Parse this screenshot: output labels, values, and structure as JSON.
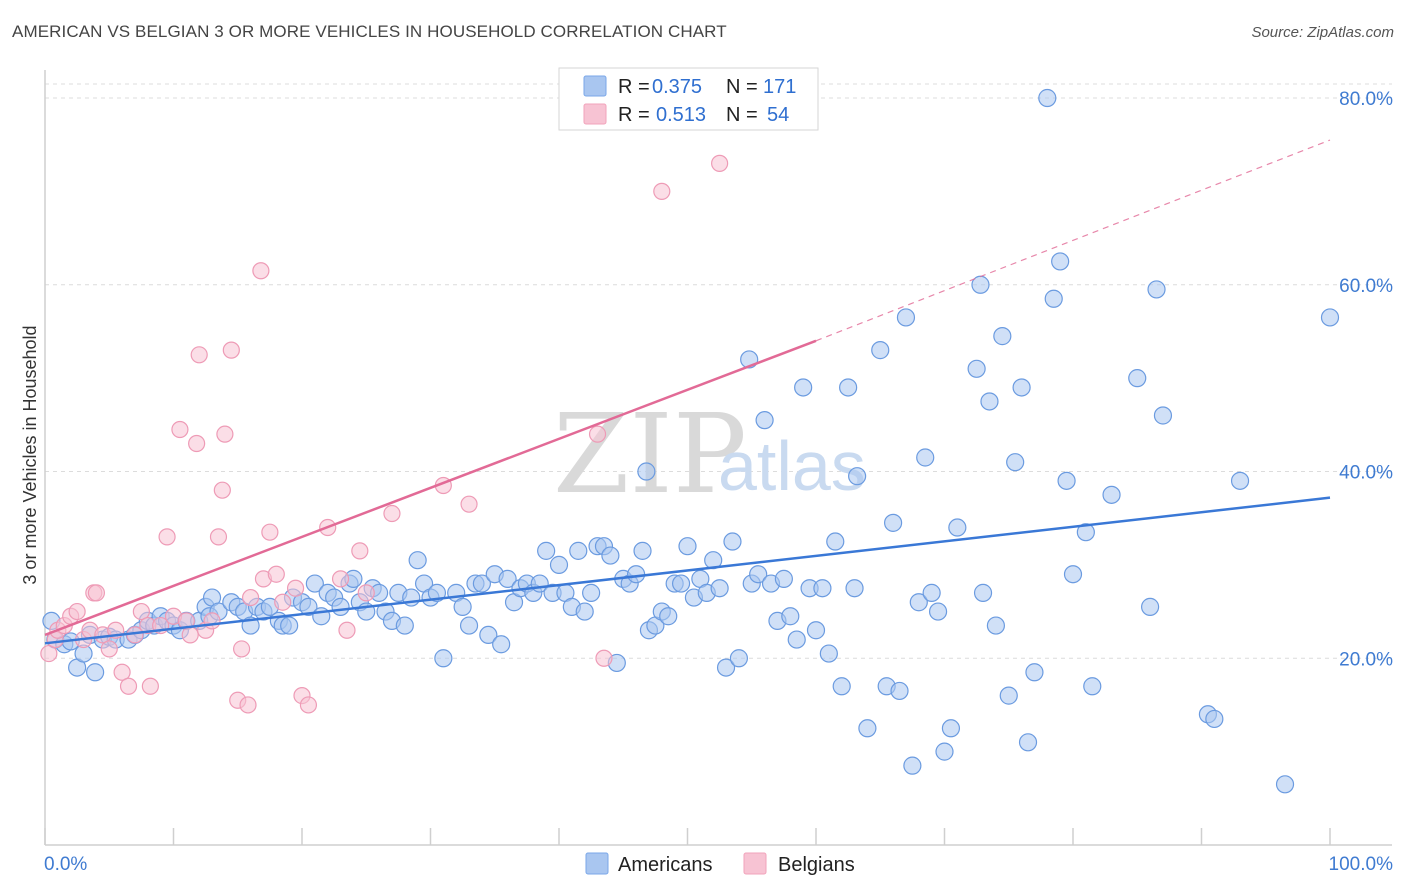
{
  "header": {
    "title": "AMERICAN VS BELGIAN 3 OR MORE VEHICLES IN HOUSEHOLD CORRELATION CHART",
    "source": "Source: ZipAtlas.com"
  },
  "watermark": {
    "zip": "ZIP",
    "atlas": "atlas"
  },
  "legend_top": [
    {
      "r_label": "R =",
      "r_value": "0.375",
      "n_label": "N =",
      "n_value": "171",
      "color": "#7aa7e8"
    },
    {
      "r_label": "R =",
      "r_value": "0.513",
      "n_label": "N =",
      "n_value": "54",
      "color": "#f2a3bb"
    }
  ],
  "legend_bottom": [
    {
      "label": "Americans",
      "color": "#7aa7e8"
    },
    {
      "label": "Belgians",
      "color": "#f2a3bb"
    }
  ],
  "chart_data": {
    "type": "scatter",
    "title": "AMERICAN VS BELGIAN 3 OR MORE VEHICLES IN HOUSEHOLD CORRELATION CHART",
    "xlabel": "",
    "ylabel": "3 or more Vehicles in Household",
    "xlim": [
      0,
      100
    ],
    "ylim": [
      0,
      83
    ],
    "x_tick_labels": [
      "0.0%",
      "100.0%"
    ],
    "y_ticks": [
      20,
      40,
      60,
      80
    ],
    "y_tick_labels": [
      "20.0%",
      "40.0%",
      "60.0%",
      "80.0%"
    ],
    "grid": true,
    "legend_position": "top-center",
    "colors": {
      "americans": "#3a78d6",
      "americans_fill": "#a9c6f0",
      "belgians": "#e26a96",
      "belgians_fill": "#f7c3d3"
    },
    "series": [
      {
        "name": "Americans",
        "r": 0.375,
        "n": 171,
        "trend": {
          "x": [
            0,
            100
          ],
          "y": [
            21.6,
            37.2
          ]
        },
        "points": [
          [
            0.5,
            24
          ],
          [
            0.8,
            22
          ],
          [
            1.5,
            21.5
          ],
          [
            2,
            21.8
          ],
          [
            2.5,
            19
          ],
          [
            3,
            20.5
          ],
          [
            3.5,
            22.5
          ],
          [
            3.9,
            18.5
          ],
          [
            4.5,
            22
          ],
          [
            5,
            22.3
          ],
          [
            5.5,
            22
          ],
          [
            6.5,
            22
          ],
          [
            7,
            22.5
          ],
          [
            7.5,
            23
          ],
          [
            8,
            24
          ],
          [
            8.5,
            23.5
          ],
          [
            9,
            24.5
          ],
          [
            9.5,
            24
          ],
          [
            10,
            23.5
          ],
          [
            10.5,
            23
          ],
          [
            11,
            24
          ],
          [
            12,
            24
          ],
          [
            12.5,
            25.5
          ],
          [
            12.8,
            24.5
          ],
          [
            13,
            26.5
          ],
          [
            13.5,
            25
          ],
          [
            14.5,
            26
          ],
          [
            15,
            25.5
          ],
          [
            15.5,
            25
          ],
          [
            16,
            23.5
          ],
          [
            16.5,
            25.5
          ],
          [
            17,
            25
          ],
          [
            17.5,
            25.5
          ],
          [
            18.2,
            24
          ],
          [
            18.5,
            23.5
          ],
          [
            19,
            23.5
          ],
          [
            19.3,
            26.5
          ],
          [
            20,
            26
          ],
          [
            20.5,
            25.5
          ],
          [
            21,
            28
          ],
          [
            21.5,
            24.5
          ],
          [
            22,
            27
          ],
          [
            22.5,
            26.5
          ],
          [
            23,
            25.5
          ],
          [
            23.7,
            28
          ],
          [
            24,
            28.5
          ],
          [
            24.5,
            26
          ],
          [
            25,
            25
          ],
          [
            25.5,
            27.5
          ],
          [
            26,
            27
          ],
          [
            26.5,
            25
          ],
          [
            27,
            24
          ],
          [
            27.5,
            27
          ],
          [
            28,
            23.5
          ],
          [
            28.5,
            26.5
          ],
          [
            29,
            30.5
          ],
          [
            29.5,
            28
          ],
          [
            30,
            26.5
          ],
          [
            30.5,
            27
          ],
          [
            31,
            20
          ],
          [
            32,
            27
          ],
          [
            32.5,
            25.5
          ],
          [
            33,
            23.5
          ],
          [
            33.5,
            28
          ],
          [
            34,
            28
          ],
          [
            34.5,
            22.5
          ],
          [
            35,
            29
          ],
          [
            35.5,
            21.5
          ],
          [
            36,
            28.5
          ],
          [
            36.5,
            26
          ],
          [
            37,
            27.5
          ],
          [
            37.5,
            28
          ],
          [
            38,
            27
          ],
          [
            38.5,
            28
          ],
          [
            39,
            31.5
          ],
          [
            39.5,
            27
          ],
          [
            40,
            30
          ],
          [
            40.5,
            27
          ],
          [
            41,
            25.5
          ],
          [
            41.5,
            31.5
          ],
          [
            42,
            25
          ],
          [
            42.5,
            27
          ],
          [
            43,
            32
          ],
          [
            43.5,
            32
          ],
          [
            44,
            31
          ],
          [
            44.5,
            19.5
          ],
          [
            45,
            28.5
          ],
          [
            45.5,
            28
          ],
          [
            46,
            29
          ],
          [
            46.5,
            31.5
          ],
          [
            46.8,
            40
          ],
          [
            47,
            23
          ],
          [
            47.5,
            23.5
          ],
          [
            48,
            25
          ],
          [
            48.5,
            24.5
          ],
          [
            49,
            28
          ],
          [
            49.5,
            28
          ],
          [
            50,
            32
          ],
          [
            50.5,
            26.5
          ],
          [
            51,
            28.5
          ],
          [
            51.5,
            27
          ],
          [
            52,
            30.5
          ],
          [
            52.5,
            27.5
          ],
          [
            53,
            19
          ],
          [
            53.5,
            32.5
          ],
          [
            54,
            20
          ],
          [
            54.8,
            52
          ],
          [
            55,
            28
          ],
          [
            55.5,
            29
          ],
          [
            56,
            45.5
          ],
          [
            56.5,
            28
          ],
          [
            57,
            24
          ],
          [
            57.5,
            28.5
          ],
          [
            58,
            24.5
          ],
          [
            58.5,
            22
          ],
          [
            59,
            49
          ],
          [
            59.5,
            27.5
          ],
          [
            60,
            23
          ],
          [
            60.5,
            27.5
          ],
          [
            61,
            20.5
          ],
          [
            61.5,
            32.5
          ],
          [
            62,
            17
          ],
          [
            62.5,
            49
          ],
          [
            63,
            27.5
          ],
          [
            63.2,
            39.5
          ],
          [
            64,
            12.5
          ],
          [
            65,
            53
          ],
          [
            65.5,
            17
          ],
          [
            66,
            34.5
          ],
          [
            66.5,
            16.5
          ],
          [
            67,
            56.5
          ],
          [
            67.5,
            8.5
          ],
          [
            68,
            26
          ],
          [
            68.5,
            41.5
          ],
          [
            69,
            27
          ],
          [
            69.5,
            25
          ],
          [
            70,
            10
          ],
          [
            70.5,
            12.5
          ],
          [
            71,
            34
          ],
          [
            72.5,
            51
          ],
          [
            72.8,
            60
          ],
          [
            73,
            27
          ],
          [
            73.5,
            47.5
          ],
          [
            74,
            23.5
          ],
          [
            74.5,
            54.5
          ],
          [
            75,
            16
          ],
          [
            75.5,
            41
          ],
          [
            76,
            49
          ],
          [
            76.5,
            11
          ],
          [
            77,
            18.5
          ],
          [
            78,
            80
          ],
          [
            78.5,
            58.5
          ],
          [
            79,
            62.5
          ],
          [
            79.5,
            39
          ],
          [
            80,
            29
          ],
          [
            81,
            33.5
          ],
          [
            81.5,
            17
          ],
          [
            83,
            37.5
          ],
          [
            85,
            50
          ],
          [
            86,
            25.5
          ],
          [
            86.5,
            59.5
          ],
          [
            87,
            46
          ],
          [
            90.5,
            14
          ],
          [
            91,
            13.5
          ],
          [
            93,
            39
          ],
          [
            96.5,
            6.5
          ],
          [
            100,
            56.5
          ]
        ]
      },
      {
        "name": "Belgians",
        "r": 0.513,
        "n": 54,
        "trend": {
          "x": [
            0,
            60
          ],
          "y": [
            22.5,
            54
          ]
        },
        "trend_dashed": {
          "x": [
            60,
            100
          ],
          "y": [
            54,
            75.5
          ]
        },
        "points": [
          [
            0.3,
            20.5
          ],
          [
            0.8,
            22
          ],
          [
            1,
            23
          ],
          [
            1.5,
            23.5
          ],
          [
            2,
            24.5
          ],
          [
            2.5,
            25
          ],
          [
            3,
            22
          ],
          [
            3.5,
            23
          ],
          [
            3.8,
            27
          ],
          [
            4,
            27
          ],
          [
            4.5,
            22.5
          ],
          [
            5,
            21
          ],
          [
            5.5,
            23
          ],
          [
            6,
            18.5
          ],
          [
            6.5,
            17
          ],
          [
            7,
            22.5
          ],
          [
            7.5,
            25
          ],
          [
            8,
            23.5
          ],
          [
            8.2,
            17
          ],
          [
            9,
            23.5
          ],
          [
            9.5,
            33
          ],
          [
            10,
            24.5
          ],
          [
            10.5,
            44.5
          ],
          [
            11,
            24
          ],
          [
            11.3,
            22.5
          ],
          [
            11.8,
            43
          ],
          [
            12,
            52.5
          ],
          [
            12.5,
            23
          ],
          [
            13,
            24
          ],
          [
            13.5,
            33
          ],
          [
            13.8,
            38
          ],
          [
            14,
            44
          ],
          [
            14.5,
            53
          ],
          [
            15,
            15.5
          ],
          [
            15.3,
            21
          ],
          [
            15.8,
            15
          ],
          [
            16,
            26.5
          ],
          [
            16.8,
            61.5
          ],
          [
            17,
            28.5
          ],
          [
            17.5,
            33.5
          ],
          [
            18,
            29
          ],
          [
            18.5,
            26
          ],
          [
            19.5,
            27.5
          ],
          [
            20,
            16
          ],
          [
            20.5,
            15
          ],
          [
            22,
            34
          ],
          [
            23,
            28.5
          ],
          [
            23.5,
            23
          ],
          [
            24.5,
            31.5
          ],
          [
            25,
            27
          ],
          [
            27,
            35.5
          ],
          [
            31,
            38.5
          ],
          [
            33,
            36.5
          ],
          [
            43,
            44
          ],
          [
            43.5,
            20
          ],
          [
            48,
            70
          ],
          [
            52.5,
            73
          ]
        ]
      }
    ]
  }
}
